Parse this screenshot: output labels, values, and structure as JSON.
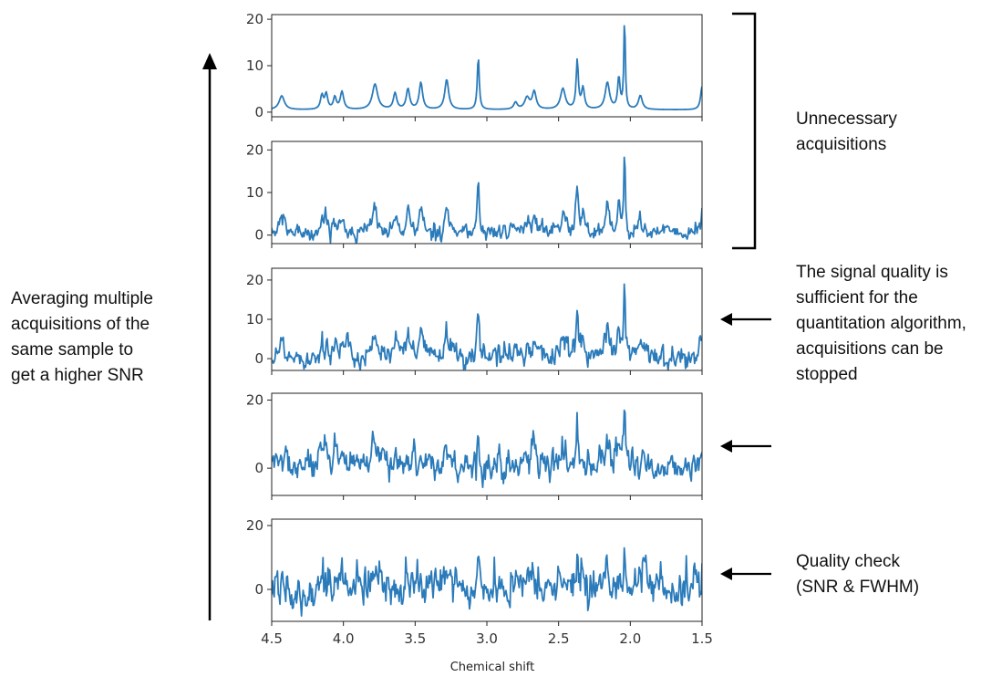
{
  "chart_data": {
    "type": "line",
    "xlabel": "Chemical shift",
    "x_axis": {
      "range": [
        4.5,
        1.5
      ],
      "reversed": true,
      "ticks": [
        4.5,
        4.0,
        3.5,
        3.0,
        2.5,
        2.0,
        1.5
      ],
      "tick_labels": [
        "4.5",
        "4.0",
        "3.5",
        "3.0",
        "2.5",
        "2.0",
        "1.5"
      ]
    },
    "line_color": "#2b7bba",
    "peaks": [
      {
        "ppm": 4.43,
        "height": 3.0,
        "width": 0.022
      },
      {
        "ppm": 4.15,
        "height": 3.0,
        "width": 0.012
      },
      {
        "ppm": 4.12,
        "height": 3.3,
        "width": 0.012
      },
      {
        "ppm": 4.06,
        "height": 2.6,
        "width": 0.012
      },
      {
        "ppm": 4.01,
        "height": 3.8,
        "width": 0.014
      },
      {
        "ppm": 3.78,
        "height": 5.5,
        "width": 0.022
      },
      {
        "ppm": 3.64,
        "height": 3.5,
        "width": 0.014
      },
      {
        "ppm": 3.55,
        "height": 4.4,
        "width": 0.014
      },
      {
        "ppm": 3.46,
        "height": 5.8,
        "width": 0.014
      },
      {
        "ppm": 3.28,
        "height": 6.5,
        "width": 0.016
      },
      {
        "ppm": 3.06,
        "height": 11.5,
        "width": 0.008
      },
      {
        "ppm": 2.8,
        "height": 1.5,
        "width": 0.015
      },
      {
        "ppm": 2.72,
        "height": 2.5,
        "width": 0.02
      },
      {
        "ppm": 2.67,
        "height": 3.8,
        "width": 0.016
      },
      {
        "ppm": 2.47,
        "height": 4.5,
        "width": 0.02
      },
      {
        "ppm": 2.37,
        "height": 10.5,
        "width": 0.009
      },
      {
        "ppm": 2.33,
        "height": 4.5,
        "width": 0.012
      },
      {
        "ppm": 2.16,
        "height": 5.8,
        "width": 0.018
      },
      {
        "ppm": 2.08,
        "height": 6.8,
        "width": 0.01
      },
      {
        "ppm": 2.04,
        "height": 20.0,
        "width": 0.006
      },
      {
        "ppm": 1.93,
        "height": 3.0,
        "width": 0.016
      },
      {
        "ppm": 1.5,
        "height": 5.0,
        "width": 0.012
      }
    ],
    "panels": [
      {
        "noise_std": 0.0,
        "scale": 1.0,
        "ylim": [
          -1,
          21
        ],
        "yticks": [
          0,
          10,
          20
        ],
        "ytick_labels": [
          "0",
          "10",
          "20"
        ]
      },
      {
        "noise_std": 1.0,
        "scale": 1.0,
        "ylim": [
          -2,
          22
        ],
        "yticks": [
          0,
          10,
          20
        ],
        "ytick_labels": [
          "0",
          "10",
          "20"
        ]
      },
      {
        "noise_std": 1.6,
        "scale": 1.0,
        "ylim": [
          -3,
          23
        ],
        "yticks": [
          0,
          10,
          20
        ],
        "ytick_labels": [
          "0",
          "10",
          "20"
        ]
      },
      {
        "noise_std": 2.4,
        "scale": 0.95,
        "ylim": [
          -8,
          22
        ],
        "yticks": [
          0,
          20
        ],
        "ytick_labels": [
          "0",
          "20"
        ]
      },
      {
        "noise_std": 3.3,
        "scale": 0.75,
        "ylim": [
          -10,
          22
        ],
        "yticks": [
          0,
          20
        ],
        "ytick_labels": [
          "0",
          "20"
        ]
      }
    ]
  },
  "annotations": {
    "left": [
      "Averaging multiple",
      "acquisitions of the",
      "same sample to",
      "get a higher SNR"
    ],
    "unnecessary": [
      "Unnecessary",
      "acquisitions"
    ],
    "sufficient": [
      "The signal quality is",
      "sufficient for the",
      "quantitation algorithm,",
      "acquisitions can be",
      "stopped"
    ],
    "quality": [
      "Quality check",
      "(SNR & FWHM)"
    ]
  }
}
